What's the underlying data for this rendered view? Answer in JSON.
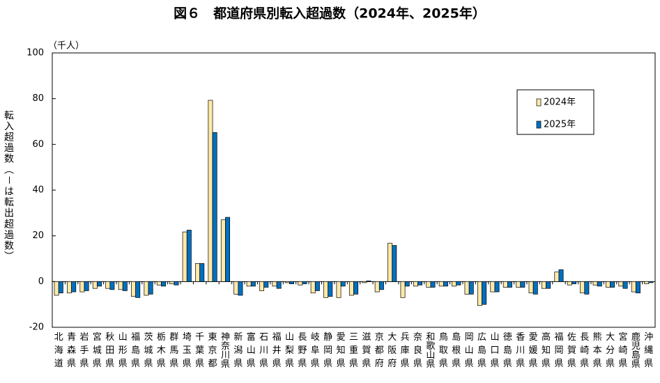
{
  "chart_data": {
    "type": "bar",
    "title": "図６　都道府県別転入超過数（2024年、2025年）",
    "y_label": "転入超過数（－は転出超過数）",
    "unit": "（千人）",
    "categories": [
      "北海道",
      "青森県",
      "岩手県",
      "宮城県",
      "秋田県",
      "山形県",
      "福島県",
      "茨城県",
      "栃木県",
      "群馬県",
      "埼玉県",
      "千葉県",
      "東京都",
      "神奈川県",
      "新潟県",
      "富山県",
      "石川県",
      "福井県",
      "山梨県",
      "長野県",
      "岐阜県",
      "静岡県",
      "愛知県",
      "三重県",
      "滋賀県",
      "京都府",
      "大阪府",
      "兵庫県",
      "奈良県",
      "和歌山県",
      "鳥取県",
      "島根県",
      "岡山県",
      "広島県",
      "山口県",
      "徳島県",
      "香川県",
      "愛媛県",
      "高知県",
      "福岡県",
      "佐賀県",
      "長崎県",
      "熊本県",
      "大分県",
      "宮崎県",
      "鹿児島県",
      "沖縄県"
    ],
    "series": [
      {
        "name": "2024年",
        "color": "#fde9a9",
        "values": [
          -6,
          -5,
          -4.5,
          -3,
          -3,
          -3.5,
          -6.5,
          -6,
          -1.5,
          -1,
          21.7,
          7.9,
          79.3,
          27,
          -5.5,
          -2,
          -4,
          -2,
          -0.5,
          -1.5,
          -5,
          -7,
          -7,
          -6,
          -0.5,
          -4.5,
          16.8,
          -7,
          -2,
          -2.5,
          -2,
          -2,
          -5.5,
          -10.5,
          -4.5,
          -2.5,
          -2.5,
          -5,
          -3,
          4.2,
          -1.5,
          -5,
          -1.5,
          -2.5,
          -2,
          -4.5,
          -1
        ]
      },
      {
        "name": "2025年",
        "color": "#0070c0",
        "values": [
          -5,
          -4.5,
          -4,
          -2,
          -3.5,
          -4,
          -7,
          -5.5,
          -2,
          -1.5,
          22.5,
          7.9,
          65.2,
          28.1,
          -6,
          -2,
          -2.5,
          -3,
          -1,
          -1,
          -4,
          -6.5,
          -2,
          -5.5,
          0.3,
          -3.5,
          15.8,
          -2,
          -1.5,
          -2.5,
          -2,
          -1.5,
          -5.5,
          -10,
          -4.5,
          -2.5,
          -2.5,
          -5.5,
          -3,
          5.2,
          -1,
          -5.5,
          -2,
          -2.5,
          -3,
          -5,
          -0.5
        ]
      }
    ],
    "ylim": [
      -20,
      100
    ],
    "yticks": [
      -20,
      0,
      20,
      40,
      60,
      80,
      100
    ],
    "grid": false,
    "legend": "upper right"
  }
}
